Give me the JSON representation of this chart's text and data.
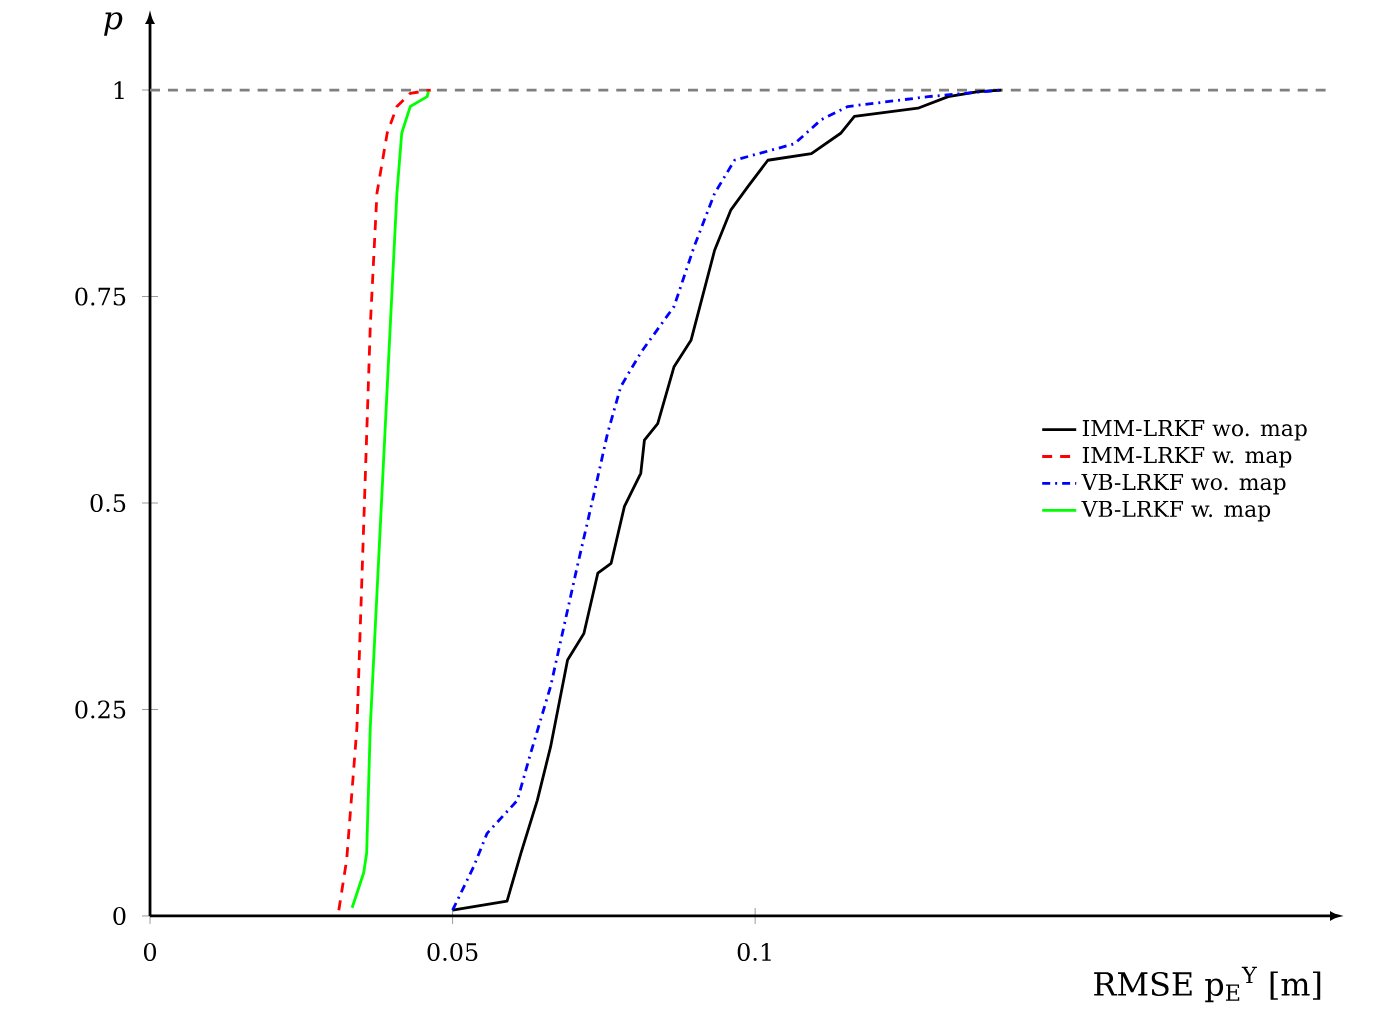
{
  "chart_data": {
    "type": "line",
    "xlabel": "RMSE p$_{E}$$^{Y}$ [m]",
    "ylabel": "p",
    "xlim": [
      0,
      0.195
    ],
    "ylim": [
      0,
      1.08
    ],
    "xticks": [
      0,
      0.05,
      0.1
    ],
    "yticks": [
      0,
      0.25,
      0.5,
      0.75,
      1
    ],
    "grid": false,
    "legend": "right",
    "marker": "none",
    "ref_lines": [
      {
        "axis": "y",
        "value": 1,
        "color": "#808080",
        "line_style": "dashed"
      }
    ],
    "series": [
      {
        "name": "IMM-LRKF wo. map",
        "color": "#000000",
        "line_style": "solid",
        "x": [
          0.05,
          0.059,
          0.0613,
          0.064,
          0.0662,
          0.069,
          0.0717,
          0.074,
          0.0762,
          0.0784,
          0.0811,
          0.0817,
          0.0839,
          0.0866,
          0.0894,
          0.0933,
          0.096,
          0.0988,
          0.1021,
          0.1093,
          0.1142,
          0.1164,
          0.1269,
          0.1319,
          0.1369,
          0.1407
        ],
        "values": [
          0.007,
          0.018,
          0.076,
          0.14,
          0.205,
          0.31,
          0.342,
          0.415,
          0.427,
          0.496,
          0.536,
          0.576,
          0.596,
          0.665,
          0.697,
          0.806,
          0.855,
          0.883,
          0.915,
          0.923,
          0.948,
          0.968,
          0.978,
          0.992,
          0.998,
          1.0
        ]
      },
      {
        "name": "IMM-LRKF w. map",
        "color": "#ff0000",
        "line_style": "dashed",
        "x": [
          0.0312,
          0.0325,
          0.0342,
          0.0353,
          0.0364,
          0.0375,
          0.0392,
          0.0408,
          0.043,
          0.0464
        ],
        "values": [
          0.007,
          0.068,
          0.229,
          0.471,
          0.714,
          0.875,
          0.948,
          0.98,
          0.996,
          1.0
        ]
      },
      {
        "name": "VB-LRKF wo. map",
        "color": "#0000ff",
        "line_style": "dashdot",
        "x": [
          0.05,
          0.0535,
          0.0557,
          0.0607,
          0.0629,
          0.0662,
          0.0706,
          0.0734,
          0.0756,
          0.0778,
          0.0811,
          0.0866,
          0.0899,
          0.0933,
          0.0966,
          0.1065,
          0.1109,
          0.1153,
          0.1286,
          0.1407
        ],
        "values": [
          0.007,
          0.06,
          0.1,
          0.14,
          0.197,
          0.278,
          0.423,
          0.512,
          0.584,
          0.641,
          0.682,
          0.738,
          0.81,
          0.875,
          0.915,
          0.935,
          0.964,
          0.98,
          0.992,
          1.0
        ]
      },
      {
        "name": "VB-LRKF w. map",
        "color": "#00ff00",
        "line_style": "solid",
        "x": [
          0.0334,
          0.0353,
          0.0358,
          0.0364,
          0.0375,
          0.0386,
          0.0397,
          0.0408,
          0.0416,
          0.043,
          0.0458,
          0.046
        ],
        "values": [
          0.01,
          0.052,
          0.076,
          0.229,
          0.39,
          0.552,
          0.714,
          0.875,
          0.948,
          0.98,
          0.992,
          0.998
        ]
      }
    ]
  }
}
